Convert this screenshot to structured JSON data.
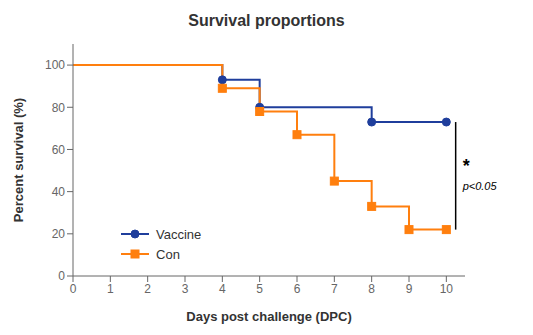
{
  "chart_data": {
    "type": "line",
    "title": "Survival proportions",
    "xlabel": "Days post challenge (DPC)",
    "ylabel": "Percent survival (%)",
    "xlim": [
      0,
      10.5
    ],
    "ylim": [
      0,
      110
    ],
    "xticks": [
      0,
      1,
      2,
      3,
      4,
      5,
      6,
      7,
      8,
      9,
      10
    ],
    "yticks": [
      0,
      20,
      40,
      60,
      80,
      100
    ],
    "grid": false,
    "legend": "lower left",
    "series": [
      {
        "name": "Vaccine",
        "color": "#1F3E9C",
        "marker": "circle",
        "x": [
          0,
          4,
          4,
          5,
          5,
          8,
          8,
          10
        ],
        "values": [
          100,
          100,
          93,
          93,
          80,
          80,
          73,
          73
        ],
        "marker_x": [
          4,
          5,
          8,
          10
        ],
        "marker_values": [
          93,
          80,
          73,
          73
        ]
      },
      {
        "name": "Con",
        "color": "#FF7F0E",
        "marker": "square",
        "x": [
          0,
          4,
          4,
          5,
          5,
          6,
          6,
          7,
          7,
          8,
          8,
          9,
          9,
          10
        ],
        "values": [
          100,
          100,
          89,
          89,
          78,
          78,
          67,
          67,
          45,
          45,
          33,
          33,
          22,
          22
        ],
        "marker_x": [
          4,
          5,
          6,
          7,
          8,
          9,
          10
        ],
        "marker_values": [
          89,
          78,
          67,
          45,
          33,
          22,
          22
        ]
      }
    ],
    "annotations": [
      {
        "type": "bracket",
        "x": 10.25,
        "y_top": 73,
        "y_bottom": 22,
        "text": "*",
        "subtext": "p<0.05"
      }
    ]
  }
}
